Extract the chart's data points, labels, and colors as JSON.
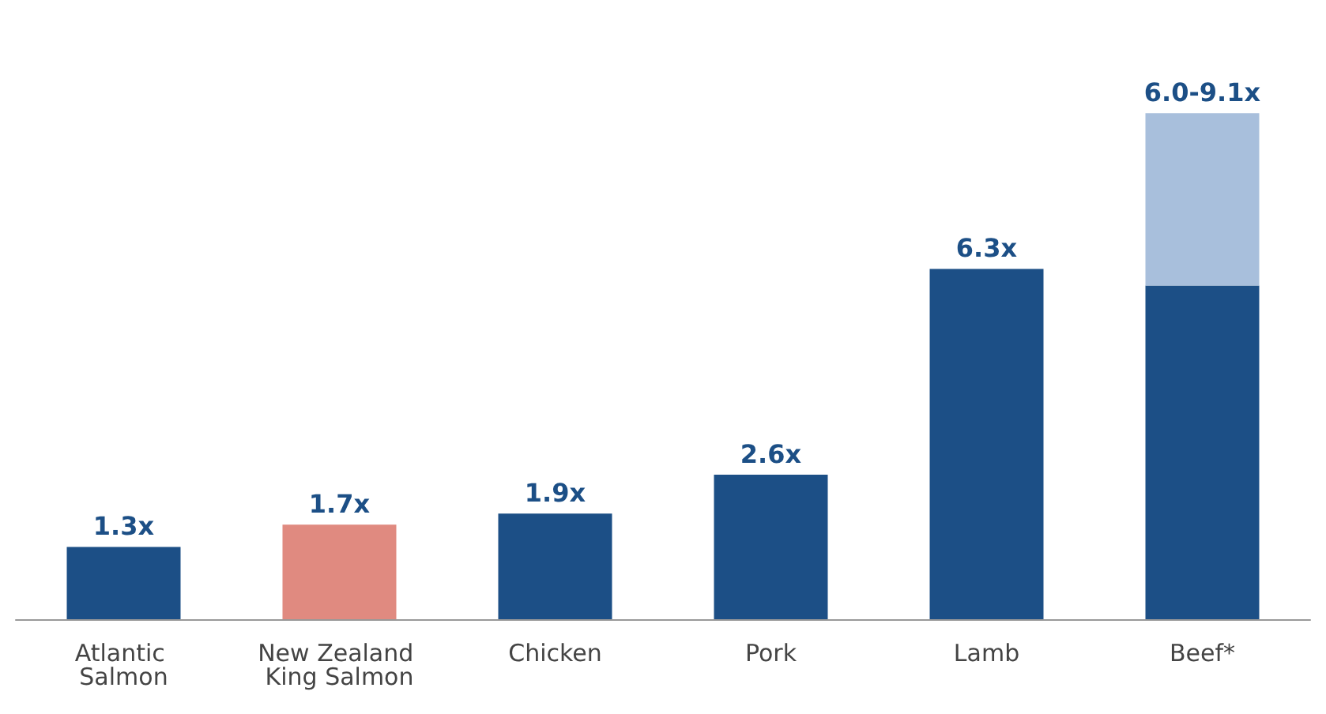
{
  "chart_data": {
    "type": "bar",
    "stacked": true,
    "categories": [
      "Atlantic Salmon",
      "New Zealand King Salmon",
      "Chicken",
      "Pork",
      "Lamb",
      "Beef*"
    ],
    "series": [
      {
        "color": "#1c4f86",
        "colors": [
          "#1c4f86",
          "#e08a80",
          "#1c4f86",
          "#1c4f86",
          "#1c4f86",
          "#1c4f86"
        ],
        "values": [
          1.3,
          1.7,
          1.9,
          2.6,
          6.3,
          6.0
        ],
        "value_labels": [
          "1.3x",
          "1.7x",
          "1.9x",
          "2.6x",
          "6.3x",
          null
        ]
      },
      {
        "color": "#a8bfdc",
        "values": [
          null,
          null,
          null,
          null,
          null,
          3.1
        ],
        "value_labels": [
          null,
          null,
          null,
          null,
          null,
          "6.0-9.1x"
        ]
      }
    ],
    "grid": false
  }
}
